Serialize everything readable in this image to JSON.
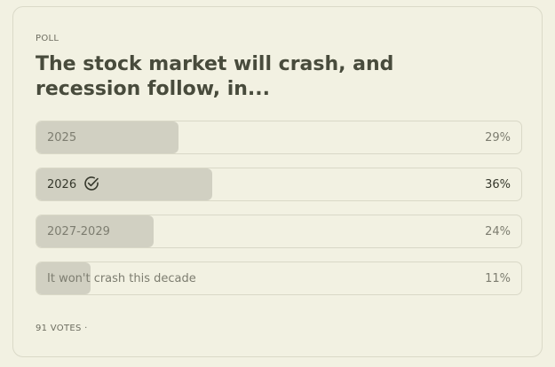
{
  "poll": {
    "label": "POLL",
    "question": "The stock market will crash, and recession follow, in...",
    "options": [
      {
        "label": "2025",
        "percent_text": "29%",
        "percent": 29,
        "selected": false
      },
      {
        "label": "2026",
        "percent_text": "36%",
        "percent": 36,
        "selected": true
      },
      {
        "label": "2027-2029",
        "percent_text": "24%",
        "percent": 24,
        "selected": false
      },
      {
        "label": "It won't crash this decade",
        "percent_text": "11%",
        "percent": 11,
        "selected": false
      }
    ],
    "votes_text": "91 VOTES ·",
    "selected_icon": "check-circle-icon"
  },
  "colors": {
    "background": "#f2f1e2",
    "bar_fill": "#d1d0c2",
    "title": "#484b3c"
  }
}
